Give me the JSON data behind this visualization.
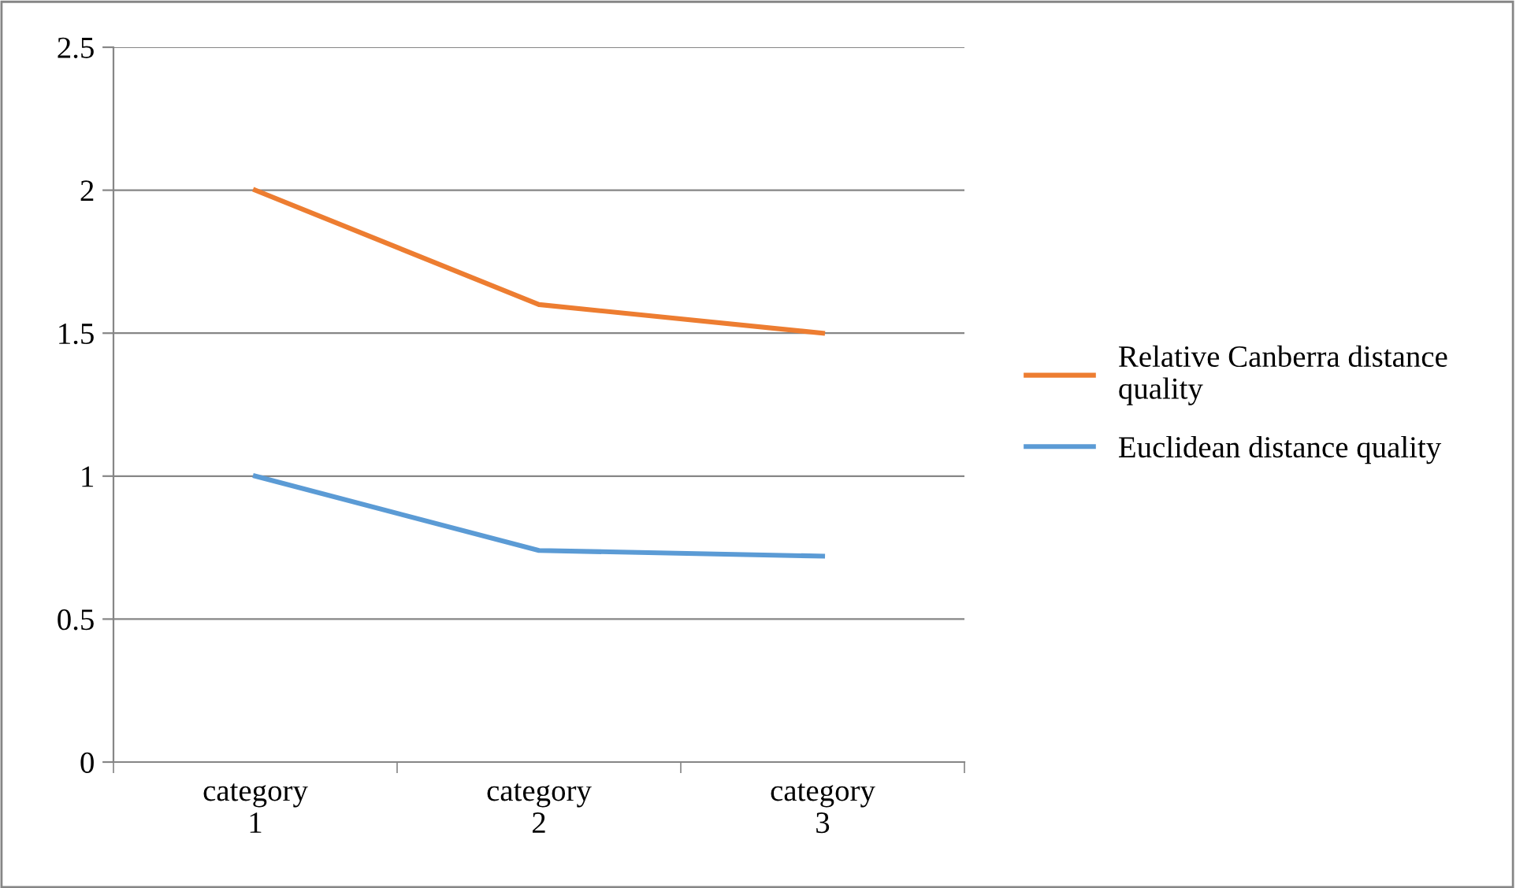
{
  "chart_data": {
    "type": "line",
    "categories": [
      "category 1",
      "category 2",
      "category 3"
    ],
    "series": [
      {
        "name": "Relative Canberra distance quality",
        "color": "#ed7d31",
        "values": [
          2,
          1.6,
          1.5
        ]
      },
      {
        "name": "Euclidean distance quality",
        "color": "#5b9bd5",
        "values": [
          1,
          0.74,
          0.72
        ]
      }
    ],
    "ylim": [
      0,
      2.5
    ],
    "yticks": [
      0,
      0.5,
      1,
      1.5,
      2,
      2.5
    ],
    "grid": "y",
    "legend": "right",
    "marker": "none",
    "line_style": "solid"
  }
}
